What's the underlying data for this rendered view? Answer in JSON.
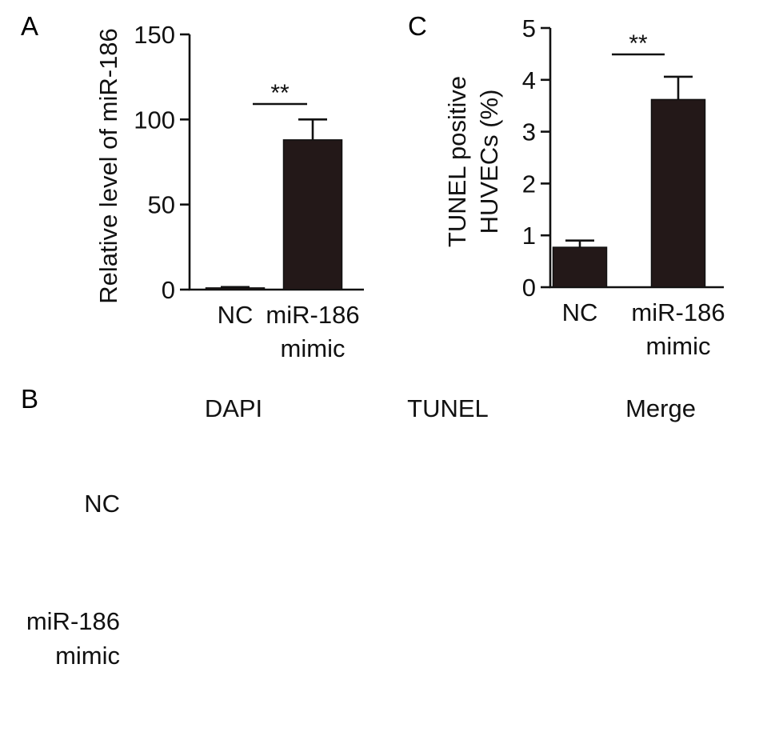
{
  "panel_labels": {
    "a": "A",
    "b": "B",
    "c": "C"
  },
  "chart_data": [
    {
      "type": "bar",
      "panel": "A",
      "title": "",
      "xlabel": "",
      "ylabel": "Relative level of miR-186",
      "categories": [
        "NC",
        "miR-186 mimic"
      ],
      "category_lines": [
        [
          "NC"
        ],
        [
          "miR-186",
          "mimic"
        ]
      ],
      "values": [
        1,
        88
      ],
      "errors": [
        0.5,
        12
      ],
      "ylim": [
        0,
        150
      ],
      "yticks": [
        0,
        50,
        100,
        150
      ],
      "significance": "**",
      "bar_color": "#231818",
      "grid": false
    },
    {
      "type": "bar",
      "panel": "C",
      "title": "",
      "xlabel": "",
      "ylabel_lines": [
        "TUNEL positive",
        "HUVECs (%)"
      ],
      "categories": [
        "NC",
        "miR-186 mimic"
      ],
      "category_lines": [
        [
          "NC"
        ],
        [
          "miR-186",
          "mimic"
        ]
      ],
      "values": [
        0.77,
        3.62
      ],
      "errors": [
        0.13,
        0.44
      ],
      "ylim": [
        0,
        5
      ],
      "yticks": [
        0,
        1,
        2,
        3,
        4,
        5
      ],
      "significance": "**",
      "bar_color": "#231818",
      "grid": false
    }
  ],
  "micrographs": {
    "columns": [
      "DAPI",
      "TUNEL",
      "Merge"
    ],
    "rows": [
      {
        "lines": [
          "NC"
        ],
        "label": "NC"
      },
      {
        "lines": [
          "miR-186",
          "mimic"
        ],
        "label": "miR-186 mimic"
      }
    ],
    "stain_colors": {
      "dapi": "#2b45ff",
      "tunel": "#3ee05a",
      "merge": "#3a7dff"
    }
  }
}
